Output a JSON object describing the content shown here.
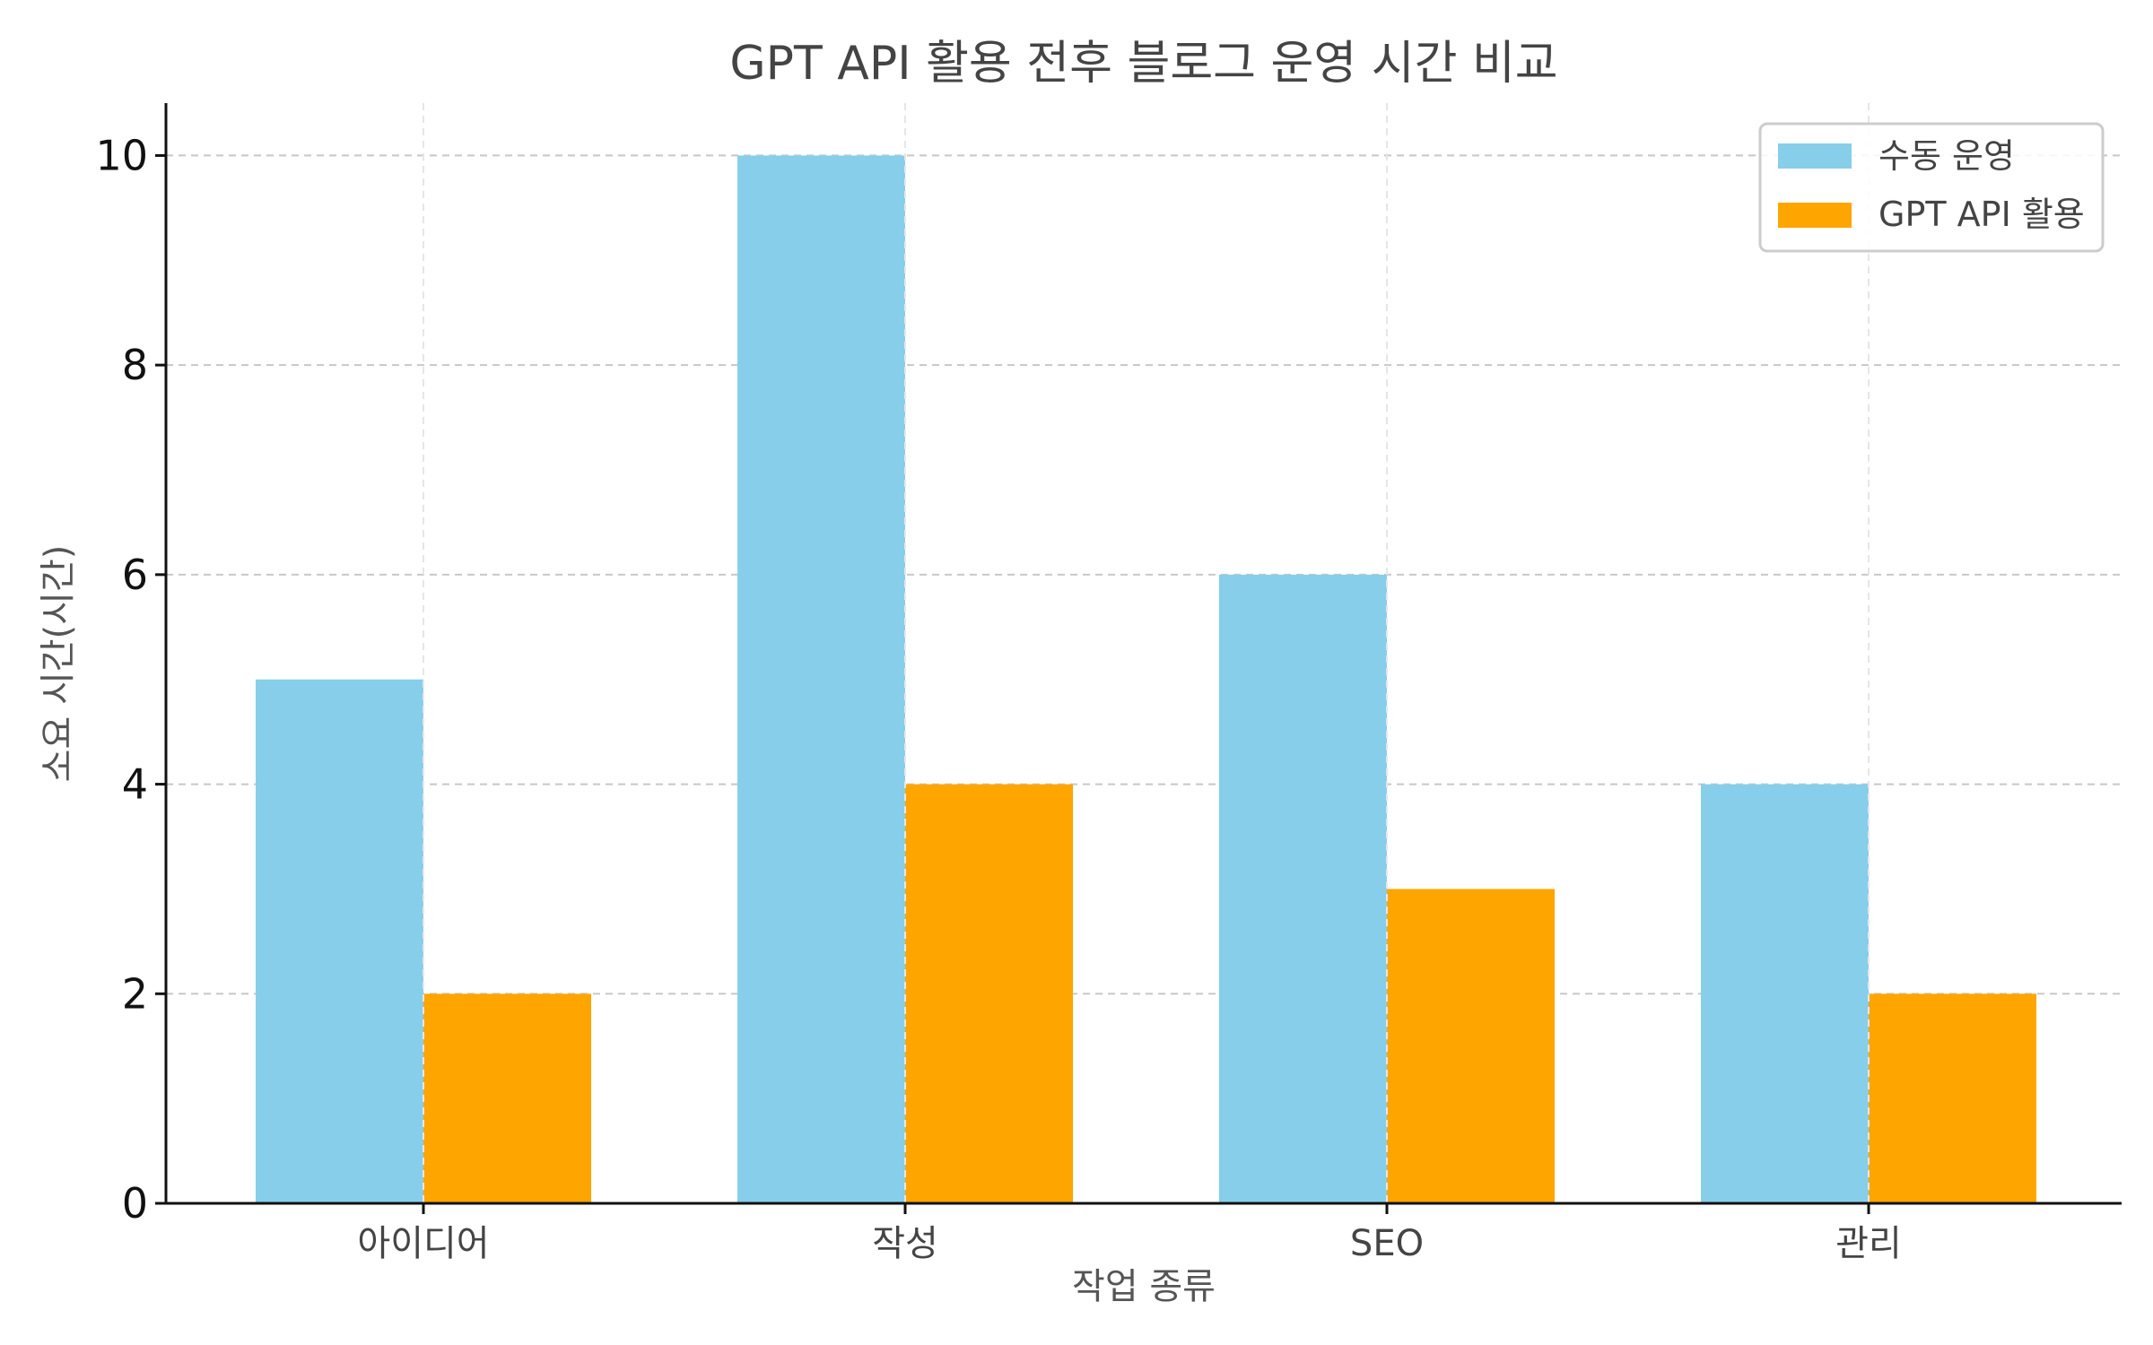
{
  "chart_data": {
    "type": "bar",
    "title": "GPT API 활용 전후 블로그 운영 시간 비교",
    "xlabel": "작업 종류",
    "ylabel": "소요 시간(시간)",
    "categories": [
      "아이디어",
      "작성",
      "SEO",
      "관리"
    ],
    "series": [
      {
        "name": "수동 운영",
        "color": "#87CEEB",
        "values": [
          5,
          10,
          6,
          4
        ]
      },
      {
        "name": "GPT API 활용",
        "color": "#FFA500",
        "values": [
          2,
          4,
          3,
          2
        ]
      }
    ],
    "ylim": [
      0,
      10.5
    ],
    "yticks": [
      "0",
      "2",
      "4",
      "6",
      "8",
      "10"
    ],
    "grid": true,
    "legend_position": "top-right"
  }
}
